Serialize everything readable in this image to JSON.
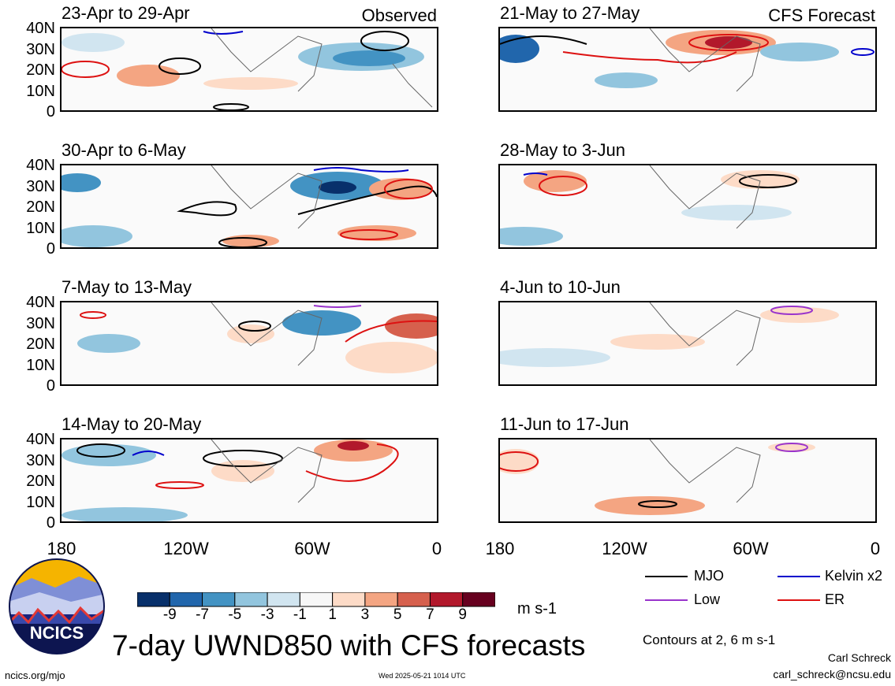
{
  "header": {
    "left_label": "Observed",
    "right_label": "CFS Forecast"
  },
  "chart_data": {
    "type": "heatmap",
    "variable_units": "m s-1",
    "title": "7-day UWND850 with CFS forecasts",
    "x_ticks": [
      "180",
      "120W",
      "60W",
      "0"
    ],
    "y_ticks": [
      "40N",
      "30N",
      "20N",
      "10N",
      "0"
    ],
    "colorbar": {
      "ticks": [
        "-9",
        "-7",
        "-5",
        "-3",
        "-1",
        "1",
        "3",
        "5",
        "7",
        "9"
      ],
      "colors": [
        "#08306b",
        "#2166ac",
        "#4393c3",
        "#92c5de",
        "#d1e5f0",
        "#f7f7f7",
        "#fddbc7",
        "#f4a582",
        "#d6604d",
        "#b2182b",
        "#67001f"
      ]
    },
    "panels": [
      {
        "column": "observed",
        "period": "23-Apr to 29-Apr"
      },
      {
        "column": "observed",
        "period": "30-Apr to 6-May"
      },
      {
        "column": "observed",
        "period": "7-May to 13-May"
      },
      {
        "column": "observed",
        "period": "14-May to 20-May"
      },
      {
        "column": "forecast",
        "period": "21-May to 27-May"
      },
      {
        "column": "forecast",
        "period": "28-May to 3-Jun"
      },
      {
        "column": "forecast",
        "period": "4-Jun to 10-Jun"
      },
      {
        "column": "forecast",
        "period": "11-Jun to 17-Jun"
      }
    ],
    "legend": [
      {
        "label": "MJO",
        "color": "#000000"
      },
      {
        "label": "Kelvin x2",
        "color": "#0000cc"
      },
      {
        "label": "Low",
        "color": "#9933cc"
      },
      {
        "label": "ER",
        "color": "#dd1111"
      }
    ],
    "contour_note": "Contours at 2, 6 m s-1"
  },
  "footer": {
    "logo_text": "NCICS",
    "site": "ncics.org/mjo",
    "timestamp": "Wed 2025-05-21 1014 UTC",
    "author": "Carl Schreck",
    "email": "carl_schreck@ncsu.edu"
  }
}
